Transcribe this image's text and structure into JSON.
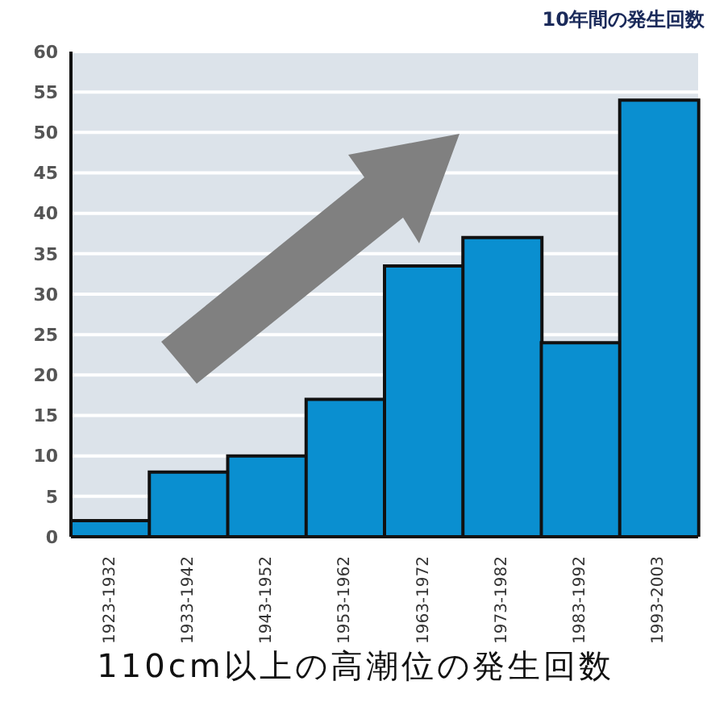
{
  "chart_data": {
    "type": "bar",
    "title": "10年間の発生回数",
    "xlabel": "110cm以上の高潮位の発生回数",
    "categories": [
      "1923-1932",
      "1933-1942",
      "1943-1952",
      "1953-1962",
      "1963-1972",
      "1973-1982",
      "1983-1992",
      "1993-2003"
    ],
    "values": [
      2,
      8,
      10,
      17,
      33.5,
      37,
      24,
      54
    ],
    "color": "#0a8fd0",
    "ylim": [
      0,
      60
    ],
    "yticks": [
      0,
      5,
      10,
      15,
      20,
      25,
      30,
      35,
      40,
      45,
      50,
      55,
      60
    ],
    "grid": "y"
  }
}
